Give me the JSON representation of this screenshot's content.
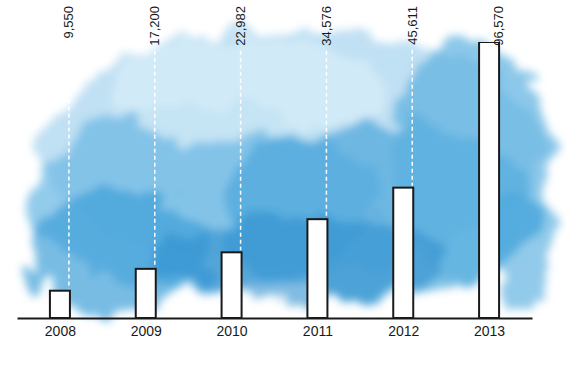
{
  "chart_data": {
    "type": "bar",
    "categories": [
      "2008",
      "2009",
      "2010",
      "2011",
      "2012",
      "2013"
    ],
    "values": [
      9550,
      17200,
      22982,
      34576,
      45611,
      96570
    ],
    "value_labels": [
      "9,550",
      "17,200",
      "22,982",
      "34,576",
      "45,611",
      "96,570"
    ],
    "color": "#ffffff",
    "data_labels": true,
    "tick_labels": "x"
  }
}
